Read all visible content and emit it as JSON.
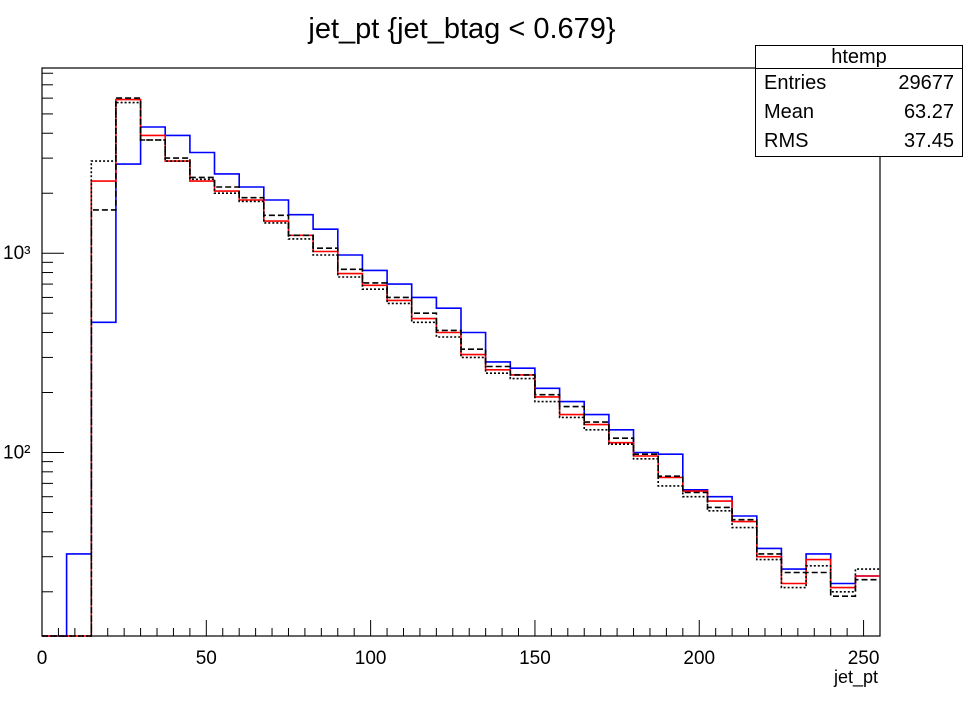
{
  "chart_data": {
    "type": "histogram",
    "title": "jet_pt {jet_btag < 0.679}",
    "xlabel": "jet_pt",
    "ylabel": "",
    "xlim": [
      0,
      255
    ],
    "ylim": [
      12,
      8500
    ],
    "yscale": "log",
    "x_ticks": [
      0,
      50,
      100,
      150,
      200,
      250
    ],
    "y_ticks": [
      {
        "value": 100,
        "label": "10²"
      },
      {
        "value": 1000,
        "label": "10³"
      }
    ],
    "grid": false,
    "bin_edges": [
      0,
      7.5,
      15,
      22.5,
      30,
      37.5,
      45,
      52.5,
      60,
      67.5,
      75,
      82.5,
      90,
      97.5,
      105,
      112.5,
      120,
      127.5,
      135,
      142.5,
      150,
      157.5,
      165,
      172.5,
      180,
      187.5,
      195,
      202.5,
      210,
      217.5,
      225,
      232.5,
      240,
      247.5,
      255
    ],
    "series": [
      {
        "color": "#0000ff",
        "style": "solid",
        "values": [
          11,
          31,
          450,
          2800,
          4300,
          3900,
          3200,
          2500,
          2150,
          1850,
          1560,
          1320,
          980,
          820,
          700,
          600,
          530,
          400,
          285,
          265,
          210,
          180,
          155,
          130,
          100,
          98,
          65,
          60,
          48,
          33,
          26,
          31,
          22,
          24
        ]
      },
      {
        "color": "#ff0000",
        "style": "solid",
        "values": [
          11,
          11,
          2300,
          5900,
          3900,
          2900,
          2300,
          2050,
          1850,
          1450,
          1230,
          1020,
          790,
          690,
          580,
          470,
          400,
          310,
          260,
          245,
          190,
          155,
          138,
          112,
          96,
          75,
          64,
          57,
          45,
          30,
          22,
          29,
          21,
          24
        ]
      },
      {
        "color": "#000000",
        "style": "dashed",
        "values": [
          11,
          11,
          1650,
          6000,
          3700,
          3000,
          2400,
          2150,
          1900,
          1550,
          1230,
          1060,
          830,
          710,
          600,
          500,
          410,
          330,
          270,
          245,
          195,
          170,
          142,
          118,
          98,
          76,
          63,
          53,
          46,
          31,
          25,
          25,
          19,
          23
        ]
      },
      {
        "color": "#000000",
        "style": "dotted",
        "values": [
          11,
          11,
          2900,
          5700,
          3700,
          2900,
          2350,
          2000,
          1820,
          1420,
          1180,
          980,
          760,
          660,
          560,
          450,
          380,
          300,
          250,
          235,
          180,
          150,
          130,
          110,
          93,
          68,
          60,
          51,
          42,
          29,
          21,
          27,
          20,
          26
        ]
      }
    ]
  },
  "stats_box": {
    "name": "htemp",
    "entries_label": "Entries",
    "entries_value": "29677",
    "mean_label": "Mean",
    "mean_value": "63.27",
    "rms_label": "RMS",
    "rms_value": "37.45"
  }
}
